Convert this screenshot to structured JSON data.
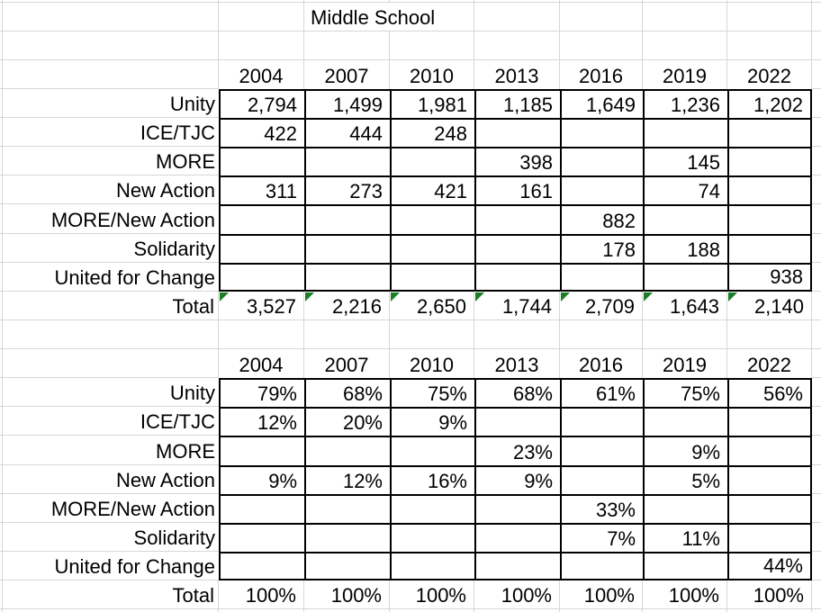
{
  "sheet": {
    "title": "Middle School",
    "years": [
      "2004",
      "2007",
      "2010",
      "2013",
      "2016",
      "2019",
      "2022"
    ],
    "row_labels": [
      "Unity",
      "ICE/TJC",
      "MORE",
      "New Action",
      "MORE/New Action",
      "Solidarity",
      "United for Change"
    ],
    "total_label": "Total",
    "tables": [
      {
        "kind": "counts",
        "flag_totals": true,
        "rows": [
          [
            "2,794",
            "1,499",
            "1,981",
            "1,185",
            "1,649",
            "1,236",
            "1,202"
          ],
          [
            "422",
            "444",
            "248",
            "",
            "",
            "",
            ""
          ],
          [
            "",
            "",
            "",
            "398",
            "",
            "145",
            ""
          ],
          [
            "311",
            "273",
            "421",
            "161",
            "",
            "74",
            ""
          ],
          [
            "",
            "",
            "",
            "",
            "882",
            "",
            ""
          ],
          [
            "",
            "",
            "",
            "",
            "178",
            "188",
            ""
          ],
          [
            "",
            "",
            "",
            "",
            "",
            "",
            "938"
          ]
        ],
        "totals": [
          "3,527",
          "2,216",
          "2,650",
          "1,744",
          "2,709",
          "1,643",
          "2,140"
        ]
      },
      {
        "kind": "percent",
        "flag_totals": false,
        "rows": [
          [
            "79%",
            "68%",
            "75%",
            "68%",
            "61%",
            "75%",
            "56%"
          ],
          [
            "12%",
            "20%",
            "9%",
            "",
            "",
            "",
            ""
          ],
          [
            "",
            "",
            "",
            "23%",
            "",
            "9%",
            ""
          ],
          [
            "9%",
            "12%",
            "16%",
            "9%",
            "",
            "5%",
            ""
          ],
          [
            "",
            "",
            "",
            "",
            "33%",
            "",
            ""
          ],
          [
            "",
            "",
            "",
            "",
            "7%",
            "11%",
            ""
          ],
          [
            "",
            "",
            "",
            "",
            "",
            "",
            "44%"
          ]
        ],
        "totals": [
          "100%",
          "100%",
          "100%",
          "100%",
          "100%",
          "100%",
          "100%"
        ]
      }
    ],
    "icons": {
      "error_flag": "green-triangle"
    },
    "colors": {
      "grid_line": "#d6d6d6",
      "table_border": "#000000",
      "flag_green": "#1b7e23",
      "background": "#ffffff",
      "text": "#000000"
    }
  }
}
